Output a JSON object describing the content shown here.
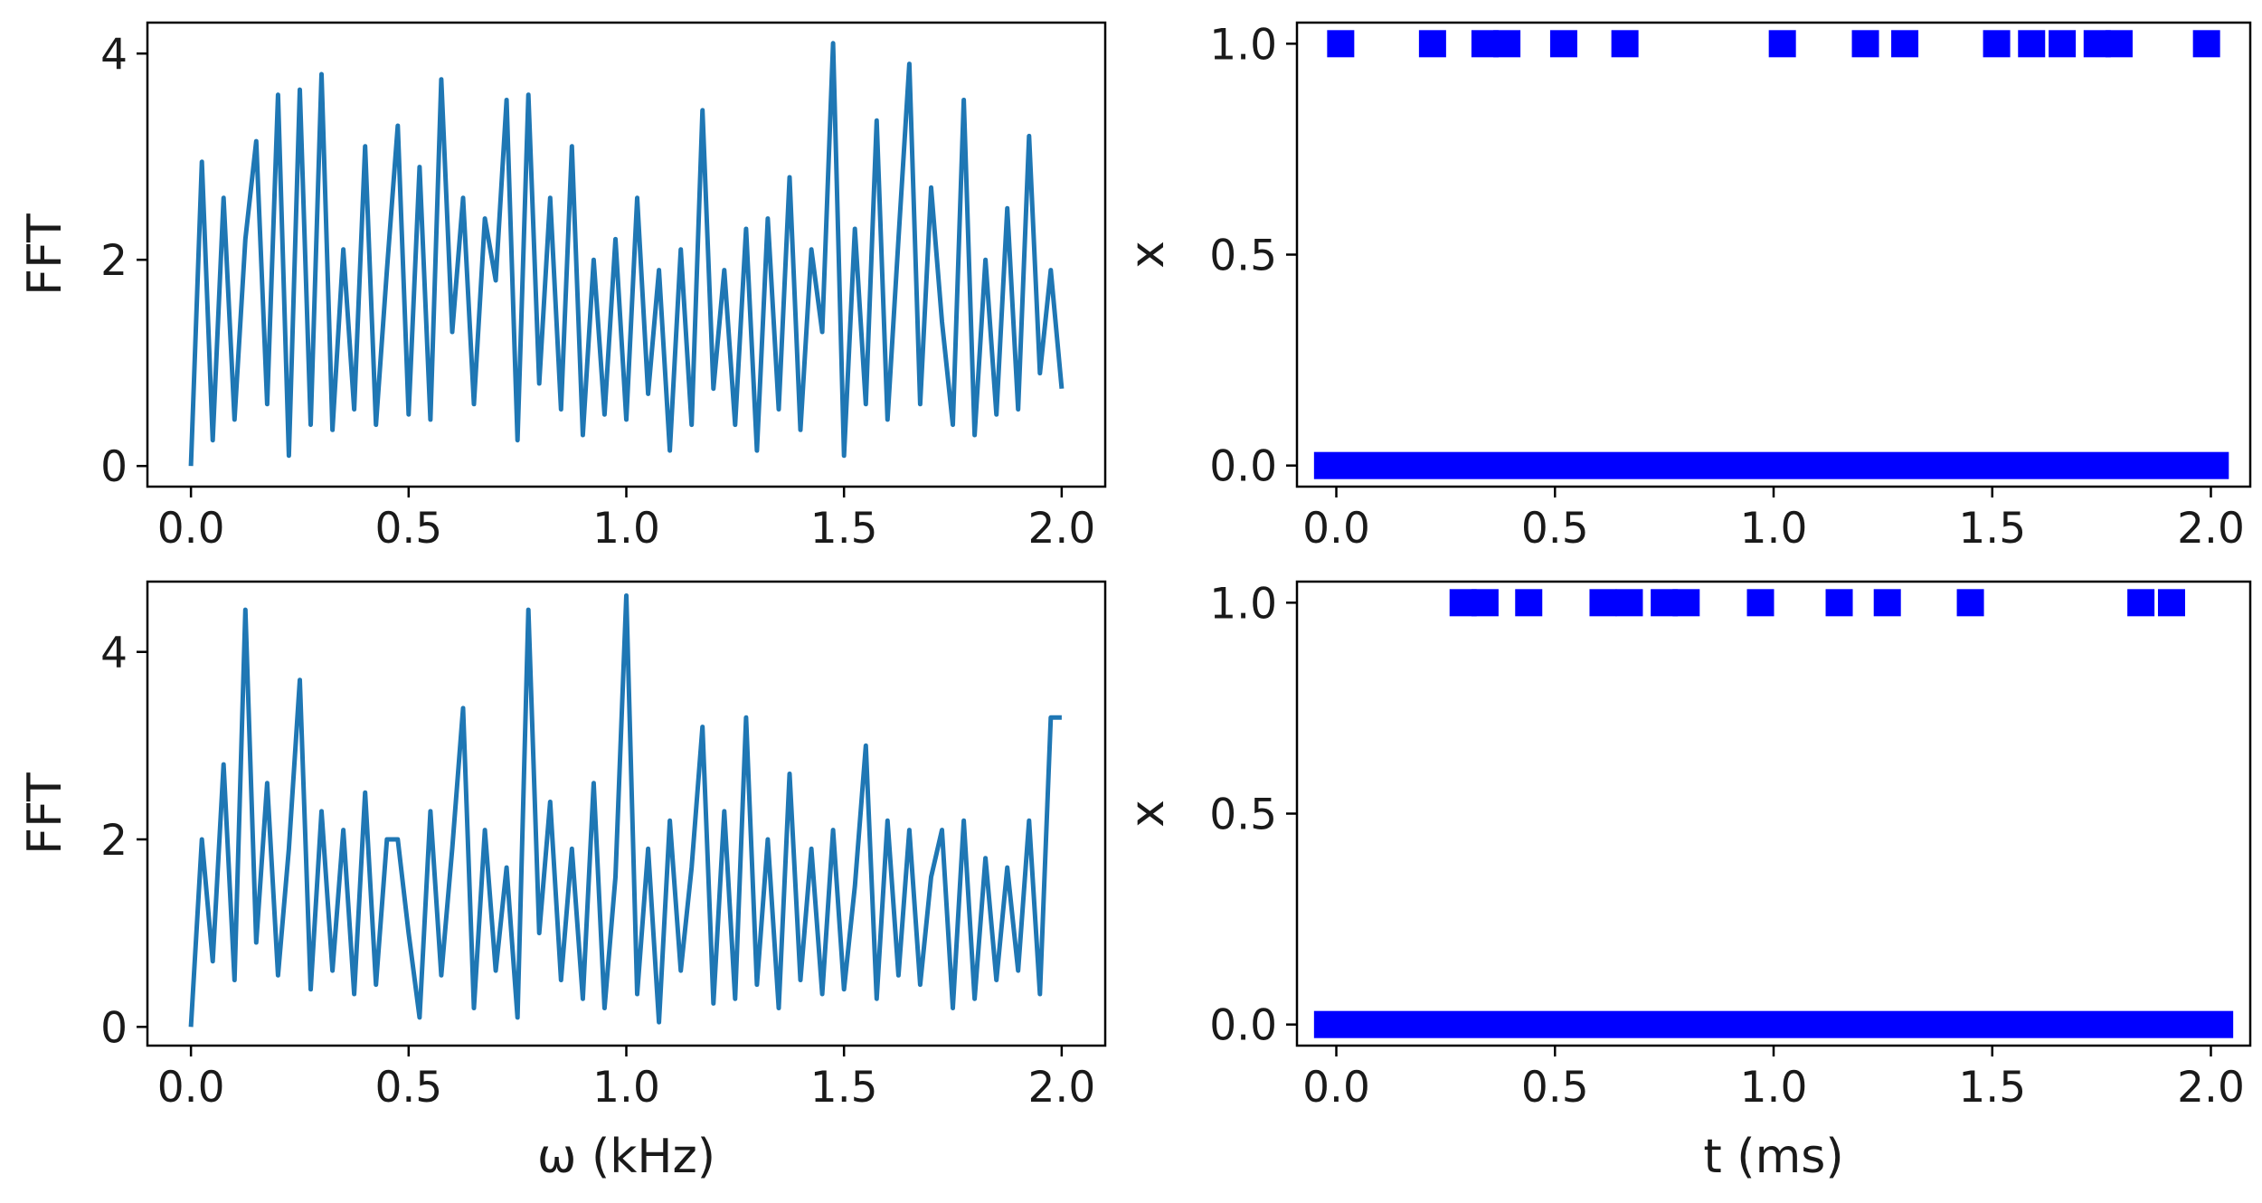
{
  "chart_data": [
    {
      "id": "fft-top",
      "type": "line",
      "xlabel": "",
      "ylabel": "FFT",
      "xlim": [
        -0.1,
        2.1
      ],
      "ylim": [
        -0.2,
        4.3
      ],
      "xticks": [
        0.0,
        0.5,
        1.0,
        1.5,
        2.0
      ],
      "xtick_labels": [
        "0.0",
        "0.5",
        "1.0",
        "1.5",
        "2.0"
      ],
      "yticks": [
        0,
        2,
        4
      ],
      "ytick_labels": [
        "0",
        "2",
        "4"
      ],
      "line_color": "#1f77b4",
      "series": [
        {
          "x": [
            0.0,
            0.025,
            0.05,
            0.075,
            0.1,
            0.125,
            0.15,
            0.175,
            0.2,
            0.225,
            0.25,
            0.275,
            0.3,
            0.325,
            0.35,
            0.375,
            0.4,
            0.425,
            0.45,
            0.475,
            0.5,
            0.525,
            0.55,
            0.575,
            0.6,
            0.625,
            0.65,
            0.675,
            0.7,
            0.725,
            0.75,
            0.775,
            0.8,
            0.825,
            0.85,
            0.875,
            0.9,
            0.925,
            0.95,
            0.975,
            1.0,
            1.025,
            1.05,
            1.075,
            1.1,
            1.125,
            1.15,
            1.175,
            1.2,
            1.225,
            1.25,
            1.275,
            1.3,
            1.325,
            1.35,
            1.375,
            1.4,
            1.425,
            1.45,
            1.475,
            1.5,
            1.525,
            1.55,
            1.575,
            1.6,
            1.625,
            1.65,
            1.675,
            1.7,
            1.725,
            1.75,
            1.775,
            1.8,
            1.825,
            1.85,
            1.875,
            1.9,
            1.925,
            1.95,
            1.975,
            2.0
          ],
          "y": [
            0.0,
            2.95,
            0.25,
            2.6,
            0.45,
            2.2,
            3.15,
            0.6,
            3.6,
            0.1,
            3.65,
            0.4,
            3.8,
            0.35,
            2.1,
            0.55,
            3.1,
            0.4,
            1.9,
            3.3,
            0.5,
            2.9,
            0.45,
            3.75,
            1.3,
            2.6,
            0.6,
            2.4,
            1.8,
            3.55,
            0.25,
            3.6,
            0.8,
            2.6,
            0.55,
            3.1,
            0.3,
            2.0,
            0.5,
            2.2,
            0.45,
            2.6,
            0.7,
            1.9,
            0.15,
            2.1,
            0.4,
            3.45,
            0.75,
            1.9,
            0.4,
            2.3,
            0.15,
            2.4,
            0.55,
            2.8,
            0.35,
            2.1,
            1.3,
            4.1,
            0.1,
            2.3,
            0.6,
            3.35,
            0.45,
            2.2,
            3.9,
            0.6,
            2.7,
            1.4,
            0.4,
            3.55,
            0.3,
            2.0,
            0.5,
            2.5,
            0.55,
            3.2,
            0.9,
            1.9,
            0.75
          ]
        }
      ]
    },
    {
      "id": "events-top",
      "type": "scatter",
      "xlabel": "",
      "ylabel": "x",
      "xlim": [
        -0.09,
        2.09
      ],
      "ylim": [
        -0.05,
        1.05
      ],
      "xticks": [
        0.0,
        0.5,
        1.0,
        1.5,
        2.0
      ],
      "xtick_labels": [
        "0.0",
        "0.5",
        "1.0",
        "1.5",
        "2.0"
      ],
      "yticks": [
        0.0,
        0.5,
        1.0
      ],
      "ytick_labels": [
        "0.0",
        "0.5",
        "1.0"
      ],
      "marker": "square",
      "marker_color": "#0000ff",
      "series": [
        {
          "x_high": [
            0.01,
            0.22,
            0.34,
            0.39,
            0.52,
            0.66,
            1.02,
            1.21,
            1.3,
            1.51,
            1.59,
            1.66,
            1.74,
            1.79,
            1.99
          ],
          "x_low_range": [
            -0.02,
            2.01
          ],
          "y_low": 0,
          "y_high": 1
        }
      ]
    },
    {
      "id": "fft-bottom",
      "type": "line",
      "xlabel": "ω (kHz)",
      "ylabel": "FFT",
      "xlim": [
        -0.1,
        2.1
      ],
      "ylim": [
        -0.2,
        4.75
      ],
      "xticks": [
        0.0,
        0.5,
        1.0,
        1.5,
        2.0
      ],
      "xtick_labels": [
        "0.0",
        "0.5",
        "1.0",
        "1.5",
        "2.0"
      ],
      "yticks": [
        0,
        2,
        4
      ],
      "ytick_labels": [
        "0",
        "2",
        "4"
      ],
      "line_color": "#1f77b4",
      "series": [
        {
          "x": [
            0.0,
            0.025,
            0.05,
            0.075,
            0.1,
            0.125,
            0.15,
            0.175,
            0.2,
            0.225,
            0.25,
            0.275,
            0.3,
            0.325,
            0.35,
            0.375,
            0.4,
            0.425,
            0.45,
            0.475,
            0.5,
            0.525,
            0.55,
            0.575,
            0.6,
            0.625,
            0.65,
            0.675,
            0.7,
            0.725,
            0.75,
            0.775,
            0.8,
            0.825,
            0.85,
            0.875,
            0.9,
            0.925,
            0.95,
            0.975,
            1.0,
            1.025,
            1.05,
            1.075,
            1.1,
            1.125,
            1.15,
            1.175,
            1.2,
            1.225,
            1.25,
            1.275,
            1.3,
            1.325,
            1.35,
            1.375,
            1.4,
            1.425,
            1.45,
            1.475,
            1.5,
            1.525,
            1.55,
            1.575,
            1.6,
            1.625,
            1.65,
            1.675,
            1.7,
            1.725,
            1.75,
            1.775,
            1.8,
            1.825,
            1.85,
            1.875,
            1.9,
            1.925,
            1.95,
            1.975,
            2.0
          ],
          "y": [
            0.0,
            2.0,
            0.7,
            2.8,
            0.5,
            4.45,
            0.9,
            2.6,
            0.55,
            1.9,
            3.7,
            0.4,
            2.3,
            0.6,
            2.1,
            0.35,
            2.5,
            0.45,
            2.0,
            2.0,
            1.0,
            0.1,
            2.3,
            0.55,
            1.9,
            3.4,
            0.2,
            2.1,
            0.6,
            1.7,
            0.1,
            4.45,
            1.0,
            2.4,
            0.5,
            1.9,
            0.3,
            2.6,
            0.2,
            1.6,
            4.6,
            0.35,
            1.9,
            0.05,
            2.2,
            0.6,
            1.7,
            3.2,
            0.25,
            2.3,
            0.3,
            3.3,
            0.45,
            2.0,
            0.2,
            2.7,
            0.5,
            1.9,
            0.35,
            2.1,
            0.4,
            1.5,
            3.0,
            0.3,
            2.2,
            0.55,
            2.1,
            0.45,
            1.6,
            2.1,
            0.2,
            2.2,
            0.3,
            1.8,
            0.5,
            1.7,
            0.6,
            2.2,
            0.35,
            3.3,
            3.3
          ]
        }
      ]
    },
    {
      "id": "events-bottom",
      "type": "scatter",
      "xlabel": "t (ms)",
      "ylabel": "x",
      "xlim": [
        -0.09,
        2.09
      ],
      "ylim": [
        -0.05,
        1.05
      ],
      "xticks": [
        0.0,
        0.5,
        1.0,
        1.5,
        2.0
      ],
      "xtick_labels": [
        "0.0",
        "0.5",
        "1.0",
        "1.5",
        "2.0"
      ],
      "yticks": [
        0.0,
        0.5,
        1.0
      ],
      "ytick_labels": [
        "0.0",
        "0.5",
        "1.0"
      ],
      "marker": "square",
      "marker_color": "#0000ff",
      "series": [
        {
          "x_high": [
            0.29,
            0.34,
            0.44,
            0.61,
            0.67,
            0.75,
            0.8,
            0.97,
            1.15,
            1.26,
            1.45,
            1.84,
            1.91
          ],
          "x_low_range": [
            -0.02,
            2.02
          ],
          "y_low": 0,
          "y_high": 1
        }
      ]
    }
  ]
}
